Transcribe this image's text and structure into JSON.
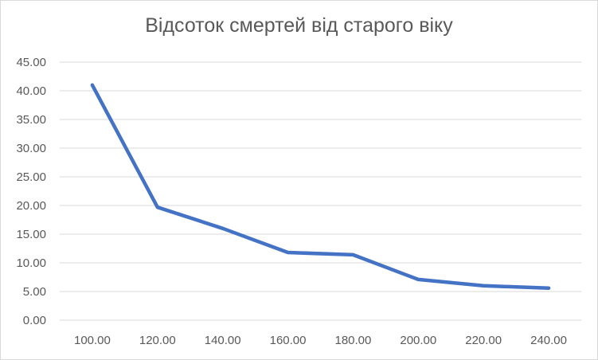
{
  "chart_data": {
    "type": "line",
    "title": "Відсоток смертей від старого віку",
    "xlabel": "",
    "ylabel": "",
    "x": [
      "100.00",
      "120.00",
      "140.00",
      "160.00",
      "180.00",
      "200.00",
      "220.00",
      "240.00"
    ],
    "series": [
      {
        "values": [
          41.0,
          19.7,
          16.0,
          11.8,
          11.4,
          7.1,
          6.0,
          5.6
        ]
      }
    ],
    "yticks": [
      "0.00",
      "5.00",
      "10.00",
      "15.00",
      "20.00",
      "25.00",
      "30.00",
      "35.00",
      "40.00",
      "45.00"
    ],
    "ylim": [
      0,
      45
    ],
    "grid": true,
    "line_color": "#4472c4",
    "grid_color": "#d9d9d9",
    "text_color": "#595959"
  }
}
